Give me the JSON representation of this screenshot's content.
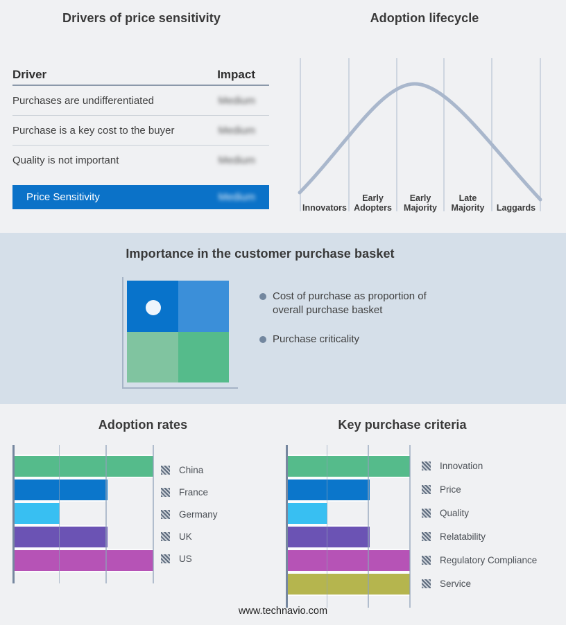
{
  "drivers_panel": {
    "title": "Drivers of price sensitivity",
    "col_driver": "Driver",
    "col_impact": "Impact",
    "rows": [
      {
        "driver": "Purchases are undifferentiated",
        "impact": "Medium"
      },
      {
        "driver": "Purchase is a key cost to the buyer",
        "impact": "Medium"
      },
      {
        "driver": "Quality is not important",
        "impact": "Medium"
      }
    ],
    "summary_row": {
      "label": "Price Sensitivity",
      "impact": "Medium"
    },
    "accent_color": "#0b72c8",
    "note": "impact values appear blurred in source"
  },
  "lifecycle_panel": {
    "title": "Adoption lifecycle",
    "categories": [
      "Innovators",
      "Early Adopters",
      "Early Majority",
      "Late Majority",
      "Laggards"
    ],
    "curve_color": "#a9b7cc"
  },
  "basket_panel": {
    "title": "Importance in the customer purchase basket",
    "bullets": [
      "Cost of purchase as proportion of overall purchase basket",
      "Purchase criticality"
    ],
    "quadrant_colors": {
      "top_left": "#0873cb",
      "top_right": "#3b8fd9",
      "bottom_left": "#80c4a0",
      "bottom_right": "#55bb8b"
    },
    "band_background": "#d5dfe9"
  },
  "footer": "www.technavio.com",
  "chart_data": [
    {
      "type": "table",
      "title": "Drivers of price sensitivity",
      "columns": [
        "Driver",
        "Impact"
      ],
      "rows": [
        [
          "Purchases are undifferentiated",
          "Medium"
        ],
        [
          "Purchase is a key cost to the buyer",
          "Medium"
        ],
        [
          "Quality is not important",
          "Medium"
        ],
        [
          "Price Sensitivity",
          "Medium"
        ]
      ]
    },
    {
      "type": "line",
      "title": "Adoption lifecycle",
      "categories": [
        "Innovators",
        "Early Adopters",
        "Early Majority",
        "Late Majority",
        "Laggards"
      ],
      "shape": "bell curve rising from Innovators, peaking at Early Majority, falling to Laggards",
      "grid": true,
      "ylabel": "",
      "xlabel": ""
    },
    {
      "type": "bar",
      "orientation": "horizontal",
      "title": "Adoption rates",
      "categories": [
        "China",
        "France",
        "Germany",
        "UK",
        "US"
      ],
      "values": [
        100,
        67,
        33,
        67,
        100
      ],
      "value_unit": "percent of max (estimated from gridlines; axis unlabeled)",
      "colors": [
        "#55bb8b",
        "#0b76cb",
        "#38bff2",
        "#6b53b4",
        "#b653b6"
      ],
      "xlim": [
        0,
        100
      ],
      "grid": true,
      "legend_position": "right"
    },
    {
      "type": "bar",
      "orientation": "horizontal",
      "title": "Key purchase criteria",
      "categories": [
        "Innovation",
        "Price",
        "Quality",
        "Relatability",
        "Regulatory Compliance",
        "Service"
      ],
      "values": [
        100,
        67,
        33,
        67,
        100,
        100
      ],
      "value_unit": "percent of max (estimated from gridlines; axis unlabeled)",
      "colors": [
        "#55bb8b",
        "#0b76cb",
        "#38bff2",
        "#6b53b4",
        "#b653b6",
        "#b5b54e"
      ],
      "xlim": [
        0,
        100
      ],
      "grid": true,
      "legend_position": "right"
    }
  ]
}
